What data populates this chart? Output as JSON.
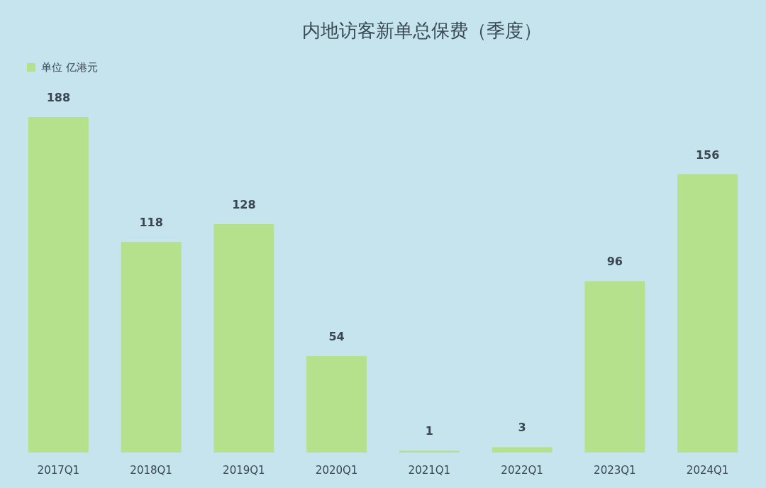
{
  "chart_data": {
    "type": "bar",
    "title": "内地访客新单总保费（季度）",
    "categories": [
      "2017Q1",
      "2018Q1",
      "2019Q1",
      "2020Q1",
      "2021Q1",
      "2022Q1",
      "2023Q1",
      "2024Q1"
    ],
    "series": [
      {
        "name": "单位 亿港元",
        "color": "#b5e08c",
        "values": [
          188,
          118,
          128,
          54,
          1,
          3,
          96,
          156
        ]
      }
    ],
    "data_labels": true,
    "legend": "top left",
    "grid": false
  }
}
